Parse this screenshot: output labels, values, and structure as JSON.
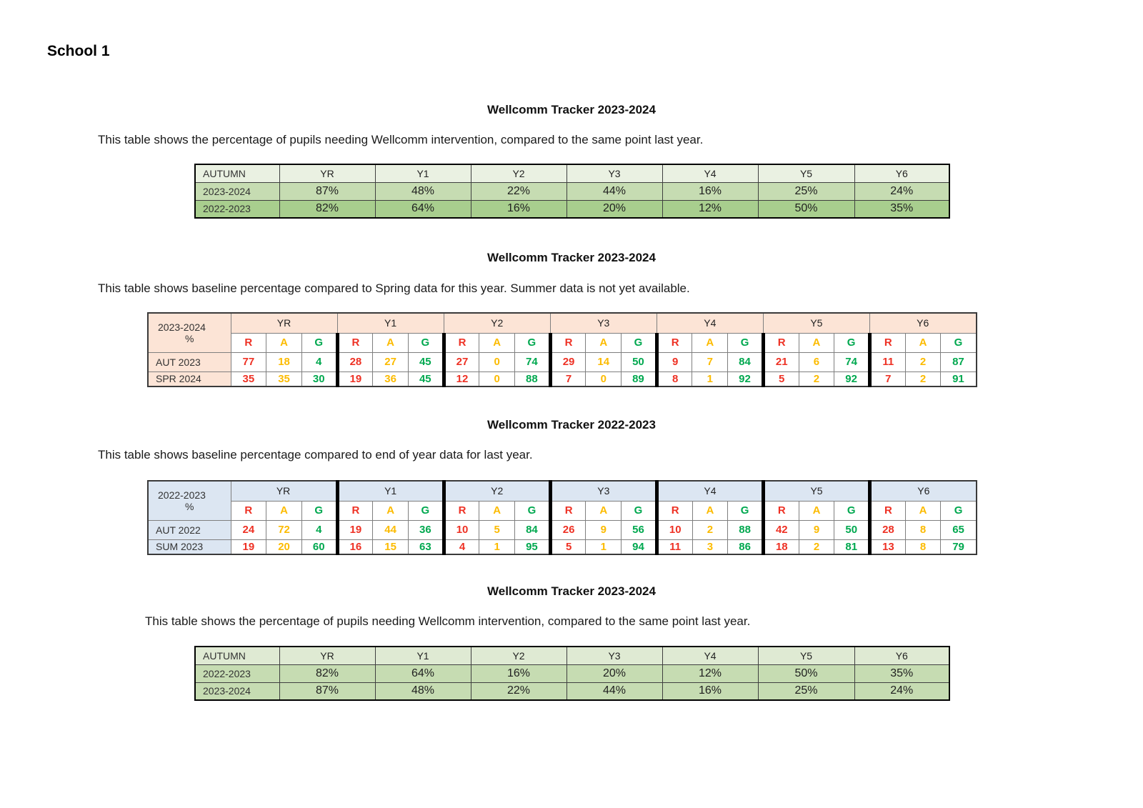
{
  "page": {
    "heading": "School 1"
  },
  "colors": {
    "rag_red": "#ee3124",
    "rag_amber": "#fcbb00",
    "rag_green": "#00a84f",
    "peach_accent": "#fce4d6",
    "blue_accent": "#dce6f2",
    "green_header_light": "#eaf1e2",
    "green_row_medium": "#c6dcb2",
    "green_row_dark": "#a8ce8e",
    "green_header_bottom": "#dfead3"
  },
  "sections": [
    {
      "title": "Wellcomm Tracker 2023-2024",
      "description": "This table shows the percentage of pupils needing Wellcomm intervention, compared to the same point last year.",
      "table": {
        "type": "summary",
        "header": {
          "label": "AUTUMN",
          "columns": [
            "YR",
            "Y1",
            "Y2",
            "Y3",
            "Y4",
            "Y5",
            "Y6"
          ],
          "bg": "#eaf1e2"
        },
        "rows": [
          {
            "label": "2023-2024",
            "bg": "#c6dcb2",
            "values": [
              "87%",
              "48%",
              "22%",
              "44%",
              "16%",
              "25%",
              "24%"
            ]
          },
          {
            "label": "2022-2023",
            "bg": "#a8ce8e",
            "values": [
              "82%",
              "64%",
              "16%",
              "20%",
              "12%",
              "50%",
              "35%"
            ]
          }
        ]
      }
    },
    {
      "title": "Wellcomm Tracker 2023-2024",
      "description": "This table shows baseline percentage compared to Spring data for this year. Summer data is not yet available.",
      "table": {
        "type": "rag",
        "accent_bg": "#fce4d6",
        "thick_year_header": false,
        "corner_label": "2023-2024",
        "corner_sub": "%",
        "groups": [
          "YR",
          "Y1",
          "Y2",
          "Y3",
          "Y4",
          "Y5",
          "Y6"
        ],
        "rag_letters": [
          "R",
          "A",
          "G"
        ],
        "rows": [
          {
            "label": "AUT 2023",
            "values": [
              [
                77,
                18,
                4
              ],
              [
                28,
                27,
                45
              ],
              [
                27,
                0,
                74
              ],
              [
                29,
                14,
                50
              ],
              [
                9,
                7,
                84
              ],
              [
                21,
                6,
                74
              ],
              [
                11,
                2,
                87
              ]
            ]
          },
          {
            "label": "SPR 2024",
            "values": [
              [
                35,
                35,
                30
              ],
              [
                19,
                36,
                45
              ],
              [
                12,
                0,
                88
              ],
              [
                7,
                0,
                89
              ],
              [
                8,
                1,
                92
              ],
              [
                5,
                2,
                92
              ],
              [
                7,
                2,
                91
              ]
            ]
          }
        ]
      }
    },
    {
      "title": "Wellcomm Tracker 2022-2023",
      "description": "This table shows baseline percentage compared to end of year data for last year.",
      "table": {
        "type": "rag",
        "accent_bg": "#dce6f2",
        "thick_year_header": true,
        "corner_label": "2022-2023",
        "corner_sub": "%",
        "groups": [
          "YR",
          "Y1",
          "Y2",
          "Y3",
          "Y4",
          "Y5",
          "Y6"
        ],
        "rag_letters": [
          "R",
          "A",
          "G"
        ],
        "rows": [
          {
            "label": "AUT 2022",
            "values": [
              [
                24,
                72,
                4
              ],
              [
                19,
                44,
                36
              ],
              [
                10,
                5,
                84
              ],
              [
                26,
                9,
                56
              ],
              [
                10,
                2,
                88
              ],
              [
                42,
                9,
                50
              ],
              [
                28,
                8,
                65
              ]
            ]
          },
          {
            "label": "SUM 2023",
            "values": [
              [
                19,
                20,
                60
              ],
              [
                16,
                15,
                63
              ],
              [
                4,
                1,
                95
              ],
              [
                5,
                1,
                94
              ],
              [
                11,
                3,
                86
              ],
              [
                18,
                2,
                81
              ],
              [
                13,
                8,
                79
              ]
            ]
          }
        ]
      }
    },
    {
      "title": "Wellcomm Tracker 2023-2024",
      "description": "This table shows the percentage of pupils needing Wellcomm intervention, compared to the same point last year.",
      "table": {
        "type": "summary",
        "header": {
          "label": "AUTUMN",
          "columns": [
            "YR",
            "Y1",
            "Y2",
            "Y3",
            "Y4",
            "Y5",
            "Y6"
          ],
          "bg": "#dfead3"
        },
        "rows": [
          {
            "label": "2022-2023",
            "bg": "#c6dcb2",
            "values": [
              "82%",
              "64%",
              "16%",
              "20%",
              "12%",
              "50%",
              "35%"
            ]
          },
          {
            "label": "2023-2024",
            "bg": "#c6dcb2",
            "values": [
              "87%",
              "48%",
              "22%",
              "44%",
              "16%",
              "25%",
              "24%"
            ]
          }
        ]
      }
    }
  ]
}
